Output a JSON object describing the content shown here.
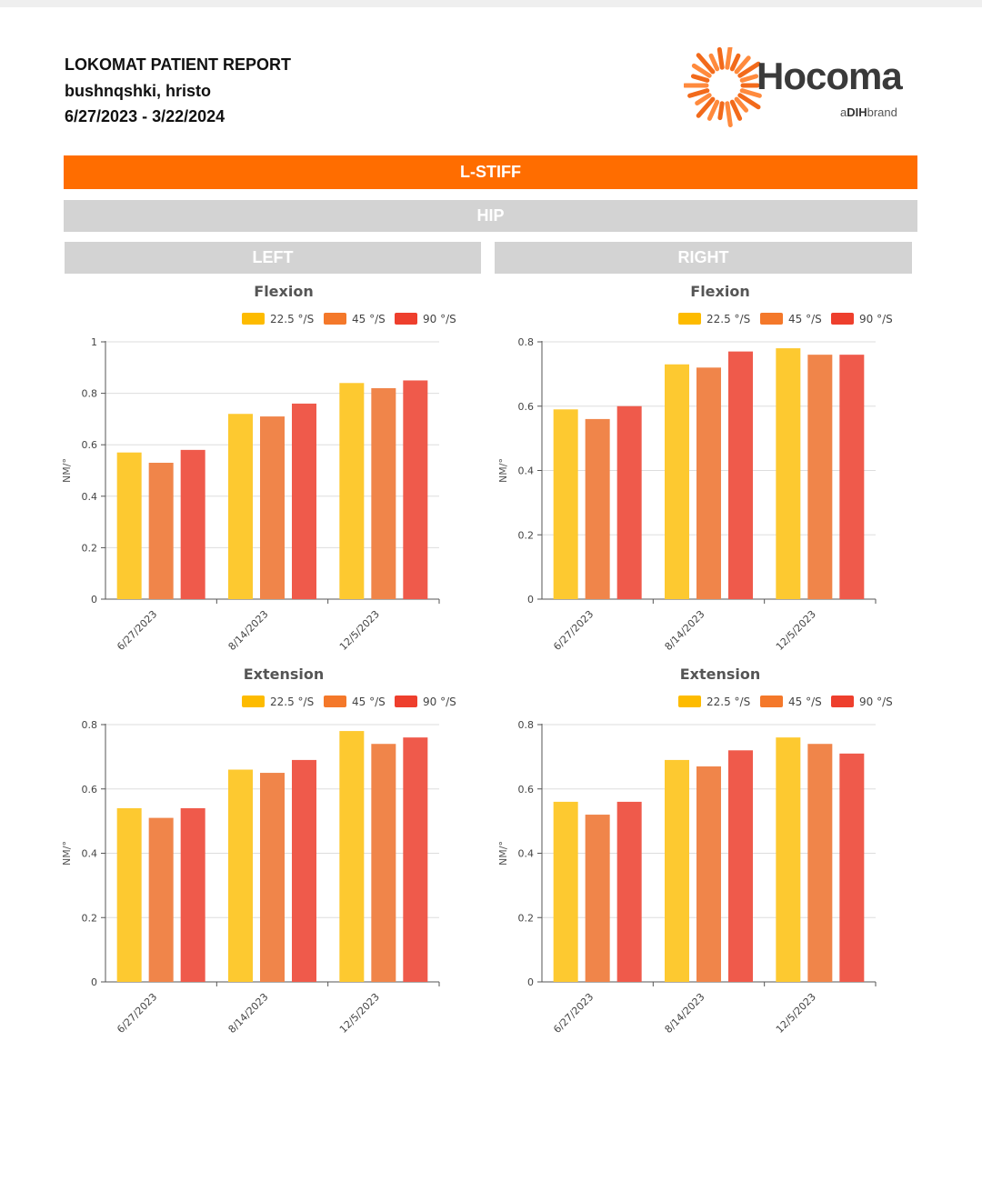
{
  "header": {
    "title": "LOKOMAT PATIENT REPORT",
    "patient": "bushnqshki, hristo",
    "date_range": "6/27/2023 - 3/22/2024"
  },
  "logo": {
    "word": "Hocoma",
    "brand_prefix": "a",
    "brand_name": "DIH",
    "brand_suffix": "brand"
  },
  "sections": {
    "assessment": "L-STIFF",
    "joint": "HIP",
    "left": "LEFT",
    "right": "RIGHT"
  },
  "colors": {
    "accent": "#ff6d00",
    "header_bar": "#d3d3d3",
    "series": [
      "#fdc930",
      "#f0854a",
      "#ef5a4b"
    ],
    "legend_swatches": [
      "#fdbb00",
      "#f4782a",
      "#ee3f2d"
    ]
  },
  "chart_data": [
    {
      "id": "left-flexion",
      "type": "bar",
      "title": "Flexion",
      "ylabel": "NM/°",
      "categories": [
        "6/27/2023",
        "8/14/2023",
        "12/5/2023"
      ],
      "ylim": [
        0,
        1
      ],
      "yticks": [
        0,
        0.2,
        0.4,
        0.6,
        0.8,
        1
      ],
      "grid": true,
      "legend": "top-right",
      "series": [
        {
          "name": "22.5 °/S",
          "values": [
            0.57,
            0.72,
            0.84
          ]
        },
        {
          "name": "45 °/S",
          "values": [
            0.53,
            0.71,
            0.82
          ]
        },
        {
          "name": "90 °/S",
          "values": [
            0.58,
            0.76,
            0.85
          ]
        }
      ]
    },
    {
      "id": "right-flexion",
      "type": "bar",
      "title": "Flexion",
      "ylabel": "NM/°",
      "categories": [
        "6/27/2023",
        "8/14/2023",
        "12/5/2023"
      ],
      "ylim": [
        0,
        0.8
      ],
      "yticks": [
        0,
        0.2,
        0.4,
        0.6,
        0.8
      ],
      "grid": true,
      "legend": "top-right",
      "series": [
        {
          "name": "22.5 °/S",
          "values": [
            0.59,
            0.73,
            0.78
          ]
        },
        {
          "name": "45 °/S",
          "values": [
            0.56,
            0.72,
            0.76
          ]
        },
        {
          "name": "90 °/S",
          "values": [
            0.6,
            0.77,
            0.76
          ]
        }
      ]
    },
    {
      "id": "left-extension",
      "type": "bar",
      "title": "Extension",
      "ylabel": "NM/°",
      "categories": [
        "6/27/2023",
        "8/14/2023",
        "12/5/2023"
      ],
      "ylim": [
        0,
        0.8
      ],
      "yticks": [
        0,
        0.2,
        0.4,
        0.6,
        0.8
      ],
      "grid": true,
      "legend": "top-right",
      "series": [
        {
          "name": "22.5 °/S",
          "values": [
            0.54,
            0.66,
            0.78
          ]
        },
        {
          "name": "45 °/S",
          "values": [
            0.51,
            0.65,
            0.74
          ]
        },
        {
          "name": "90 °/S",
          "values": [
            0.54,
            0.69,
            0.76
          ]
        }
      ]
    },
    {
      "id": "right-extension",
      "type": "bar",
      "title": "Extension",
      "ylabel": "NM/°",
      "categories": [
        "6/27/2023",
        "8/14/2023",
        "12/5/2023"
      ],
      "ylim": [
        0,
        0.8
      ],
      "yticks": [
        0,
        0.2,
        0.4,
        0.6,
        0.8
      ],
      "grid": true,
      "legend": "top-right",
      "series": [
        {
          "name": "22.5 °/S",
          "values": [
            0.56,
            0.69,
            0.76
          ]
        },
        {
          "name": "45 °/S",
          "values": [
            0.52,
            0.67,
            0.74
          ]
        },
        {
          "name": "90 °/S",
          "values": [
            0.56,
            0.72,
            0.71
          ]
        }
      ]
    }
  ]
}
